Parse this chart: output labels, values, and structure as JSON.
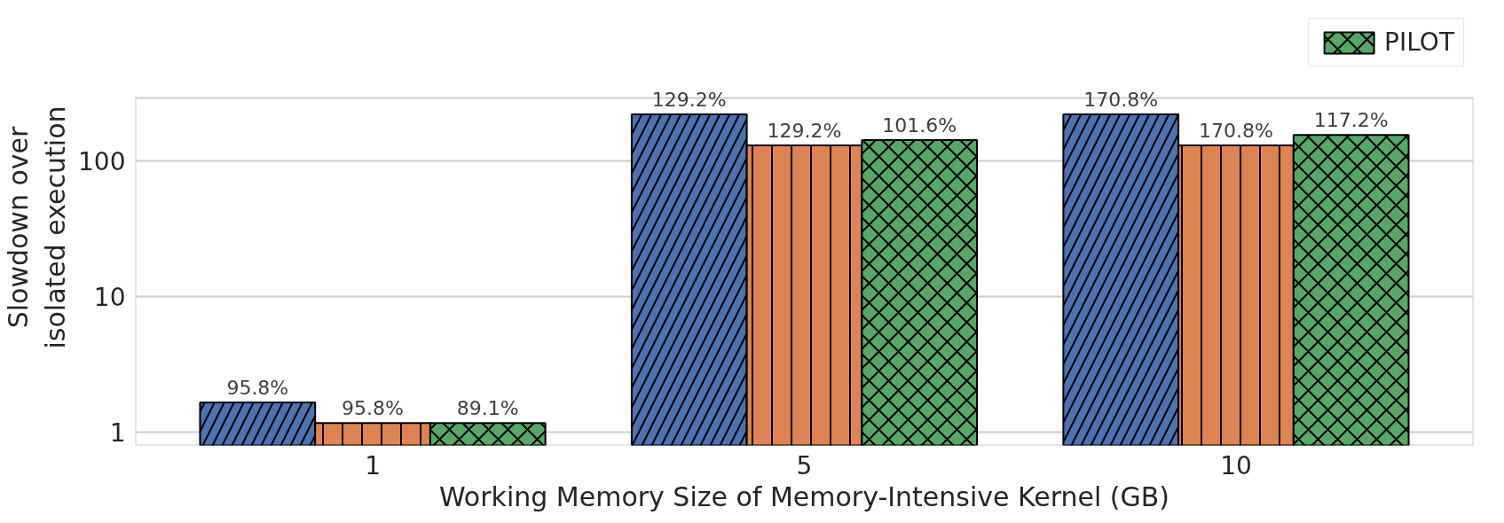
{
  "chart_data": {
    "type": "bar",
    "xlabel": "Working Memory Size of Memory-Intensive Kernel (GB)",
    "ylabel": "Slowdown over\nisolated execution",
    "categories": [
      "1",
      "5",
      "10"
    ],
    "log": true,
    "ylim": [
      0.8,
      290
    ],
    "yticks": [
      1,
      10,
      100
    ],
    "grid": "y",
    "legend": "top",
    "series": [
      {
        "color": "#4c72b0",
        "values": [
          1.66,
          220,
          220
        ]
      },
      {
        "color": "#dd8452",
        "values": [
          1.17,
          130,
          130
        ]
      },
      {
        "name": "PILOT",
        "color": "#55a868",
        "values": [
          1.17,
          142,
          155
        ]
      }
    ],
    "annotations": [
      "95.8%",
      "129.2%",
      "170.8%",
      "95.8%",
      "129.2%",
      "170.8%",
      "89.1%",
      "101.6%",
      "117.2%"
    ]
  }
}
